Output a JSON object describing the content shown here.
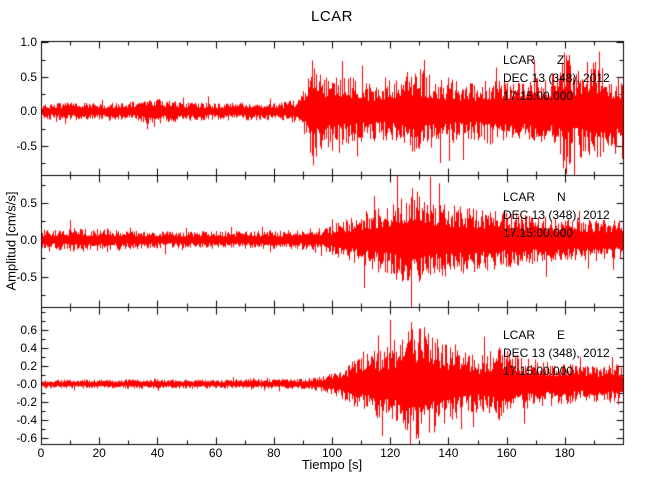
{
  "chart_data": {
    "type": "line",
    "title": "LCAR",
    "xlabel": "Tiempo [s]",
    "ylabel": "Amplitud [cm/s/s]",
    "trace_color": "#ff0000",
    "axis_color": "#000000",
    "legend_position": "top-right-inside",
    "grid": false,
    "x": {
      "min": 0,
      "max": 200,
      "minor_step": 10,
      "major_ticks": [
        {
          "t": 0,
          "label": "0"
        },
        {
          "t": 20,
          "label": "20"
        },
        {
          "t": 40,
          "label": "40"
        },
        {
          "t": 60,
          "label": "60"
        },
        {
          "t": 80,
          "label": "80"
        },
        {
          "t": 100,
          "label": "100"
        },
        {
          "t": 120,
          "label": "120"
        },
        {
          "t": 140,
          "label": "140"
        },
        {
          "t": 160,
          "label": "160"
        },
        {
          "t": 180,
          "label": "180"
        }
      ]
    },
    "panels": [
      {
        "station": "LCAR",
        "channel": "Z",
        "date_line": "DEC 13 (348), 2012",
        "time_line": "17:15:00.000",
        "y_max": 1.02,
        "y_min": -0.92,
        "y_minor_step": 0.25,
        "y_ticks": [
          {
            "v": 1.0,
            "label": "1.0"
          },
          {
            "v": 0.5,
            "label": "0.5"
          },
          {
            "v": 0.0,
            "label": "0.0"
          },
          {
            "v": -0.5,
            "label": "-0.5"
          }
        ],
        "seed": 7,
        "envelope": [
          [
            0,
            0.12
          ],
          [
            10,
            0.13
          ],
          [
            20,
            0.12
          ],
          [
            32,
            0.14
          ],
          [
            38,
            0.2
          ],
          [
            44,
            0.16
          ],
          [
            55,
            0.13
          ],
          [
            70,
            0.13
          ],
          [
            82,
            0.13
          ],
          [
            88,
            0.18
          ],
          [
            91,
            0.45
          ],
          [
            93,
            0.8
          ],
          [
            96,
            0.6
          ],
          [
            100,
            0.52
          ],
          [
            106,
            0.5
          ],
          [
            112,
            0.44
          ],
          [
            118,
            0.42
          ],
          [
            124,
            0.5
          ],
          [
            128,
            0.7
          ],
          [
            132,
            0.55
          ],
          [
            138,
            0.48
          ],
          [
            144,
            0.44
          ],
          [
            150,
            0.42
          ],
          [
            155,
            0.5
          ],
          [
            160,
            0.44
          ],
          [
            166,
            0.46
          ],
          [
            172,
            0.5
          ],
          [
            177,
            0.6
          ],
          [
            180,
            0.95
          ],
          [
            183,
            0.6
          ],
          [
            186,
            0.75
          ],
          [
            190,
            0.8
          ],
          [
            194,
            0.55
          ],
          [
            200,
            0.5
          ]
        ]
      },
      {
        "station": "LCAR",
        "channel": "N",
        "date_line": "DEC 13 (348), 2012",
        "time_line": "17:15:00.000",
        "y_max": 0.88,
        "y_min": -0.91,
        "y_minor_step": 0.25,
        "y_ticks": [
          {
            "v": 0.5,
            "label": "0.5"
          },
          {
            "v": 0.0,
            "label": "0.0"
          },
          {
            "v": -0.5,
            "label": "-0.5"
          }
        ],
        "seed": 13,
        "envelope": [
          [
            0,
            0.14
          ],
          [
            2,
            0.18
          ],
          [
            4,
            0.12
          ],
          [
            6,
            0.18
          ],
          [
            8,
            0.12
          ],
          [
            10,
            0.18
          ],
          [
            12,
            0.13
          ],
          [
            14,
            0.18
          ],
          [
            16,
            0.12
          ],
          [
            18,
            0.17
          ],
          [
            20,
            0.13
          ],
          [
            22,
            0.17
          ],
          [
            24,
            0.12
          ],
          [
            26,
            0.16
          ],
          [
            28,
            0.12
          ],
          [
            30,
            0.15
          ],
          [
            34,
            0.12
          ],
          [
            45,
            0.12
          ],
          [
            60,
            0.12
          ],
          [
            75,
            0.13
          ],
          [
            88,
            0.13
          ],
          [
            95,
            0.16
          ],
          [
            100,
            0.22
          ],
          [
            105,
            0.28
          ],
          [
            110,
            0.38
          ],
          [
            116,
            0.45
          ],
          [
            122,
            0.52
          ],
          [
            127,
            0.72
          ],
          [
            131,
            0.65
          ],
          [
            135,
            0.55
          ],
          [
            140,
            0.5
          ],
          [
            146,
            0.46
          ],
          [
            152,
            0.42
          ],
          [
            158,
            0.4
          ],
          [
            165,
            0.36
          ],
          [
            172,
            0.33
          ],
          [
            180,
            0.31
          ],
          [
            190,
            0.3
          ],
          [
            200,
            0.28
          ]
        ]
      },
      {
        "station": "LCAR",
        "channel": "E",
        "date_line": "DEC 13 (348), 2012",
        "time_line": "17:15:00.000",
        "y_max": 0.86,
        "y_min": -0.67,
        "y_minor_step": 0.1,
        "y_ticks": [
          {
            "v": 0.6,
            "label": "0.6"
          },
          {
            "v": 0.4,
            "label": "0.4"
          },
          {
            "v": 0.2,
            "label": "0.2"
          },
          {
            "v": 0.0,
            "label": "-0.0"
          },
          {
            "v": -0.2,
            "label": "-0.2"
          },
          {
            "v": -0.4,
            "label": "-0.4"
          },
          {
            "v": -0.6,
            "label": "-0.6"
          }
        ],
        "seed": 29,
        "envelope": [
          [
            0,
            0.05
          ],
          [
            20,
            0.05
          ],
          [
            40,
            0.055
          ],
          [
            60,
            0.05
          ],
          [
            80,
            0.055
          ],
          [
            90,
            0.06
          ],
          [
            96,
            0.09
          ],
          [
            100,
            0.12
          ],
          [
            104,
            0.2
          ],
          [
            108,
            0.3
          ],
          [
            113,
            0.36
          ],
          [
            118,
            0.42
          ],
          [
            123,
            0.55
          ],
          [
            127,
            0.7
          ],
          [
            131,
            0.6
          ],
          [
            135,
            0.55
          ],
          [
            139,
            0.45
          ],
          [
            144,
            0.38
          ],
          [
            150,
            0.32
          ],
          [
            156,
            0.42
          ],
          [
            160,
            0.38
          ],
          [
            164,
            0.32
          ],
          [
            170,
            0.27
          ],
          [
            176,
            0.24
          ],
          [
            182,
            0.22
          ],
          [
            188,
            0.2
          ],
          [
            194,
            0.22
          ],
          [
            200,
            0.24
          ]
        ]
      }
    ]
  }
}
